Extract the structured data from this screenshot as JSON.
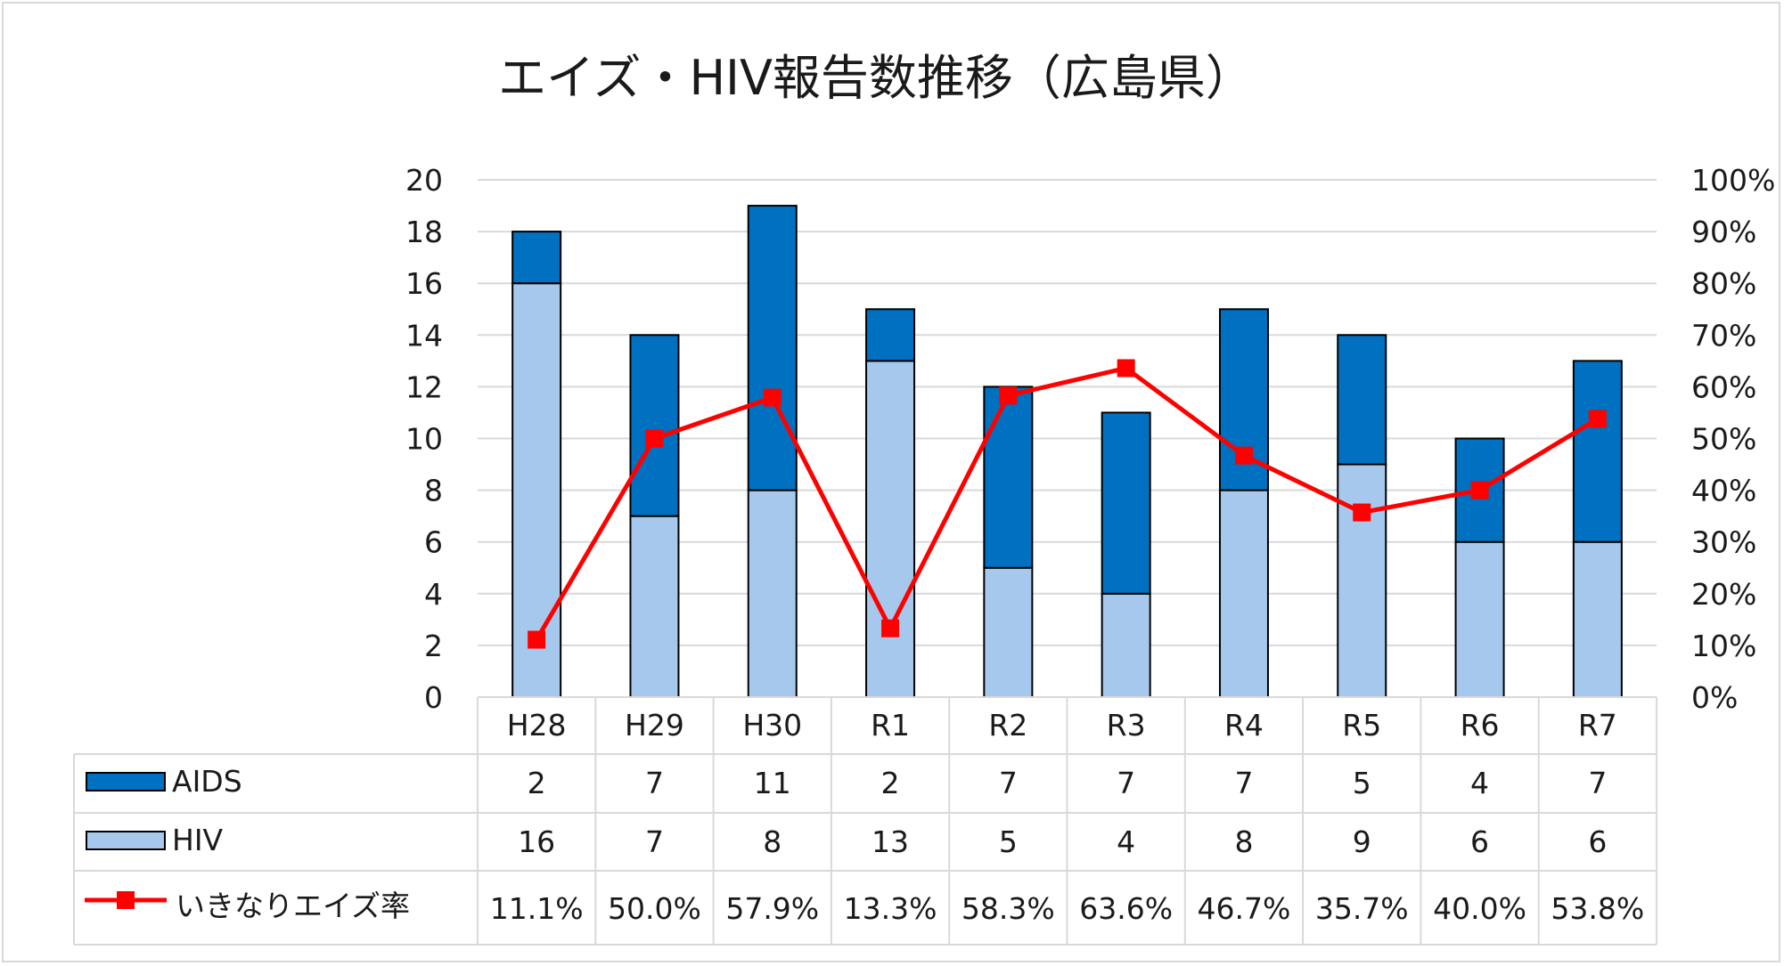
{
  "chart_data": {
    "type": "bar",
    "stacked": true,
    "title": "エイズ・HIV報告数推移（広島県）",
    "categories": [
      "H28",
      "H29",
      "H30",
      "R1",
      "R2",
      "R3",
      "R4",
      "R5",
      "R6",
      "R7"
    ],
    "series": [
      {
        "name": "AIDS",
        "type": "bar",
        "axis": "left",
        "color": "#0070C0",
        "values": [
          2,
          7,
          11,
          2,
          7,
          7,
          7,
          5,
          4,
          7
        ]
      },
      {
        "name": "HIV",
        "type": "bar",
        "axis": "left",
        "color": "#A6C8EC",
        "values": [
          16,
          7,
          8,
          13,
          5,
          4,
          8,
          9,
          6,
          6
        ]
      },
      {
        "name": "いきなりエイズ率",
        "type": "line",
        "axis": "right",
        "color": "#FF0000",
        "values": [
          11.1,
          50.0,
          57.9,
          13.3,
          58.3,
          63.6,
          46.7,
          35.7,
          40.0,
          53.8
        ],
        "labels": [
          "11.1%",
          "50.0%",
          "57.9%",
          "13.3%",
          "58.3%",
          "63.6%",
          "46.7%",
          "35.7%",
          "40.0%",
          "53.8%"
        ]
      }
    ],
    "y_left": {
      "range": [
        0,
        20
      ],
      "ticks": [
        "0",
        "2",
        "4",
        "6",
        "8",
        "10",
        "12",
        "14",
        "16",
        "18",
        "20"
      ]
    },
    "y_right": {
      "range": [
        0,
        100
      ],
      "ticks": [
        "0%",
        "10%",
        "20%",
        "30%",
        "40%",
        "50%",
        "60%",
        "70%",
        "80%",
        "90%",
        "100%"
      ]
    },
    "grid": true,
    "legend": "data-table"
  }
}
